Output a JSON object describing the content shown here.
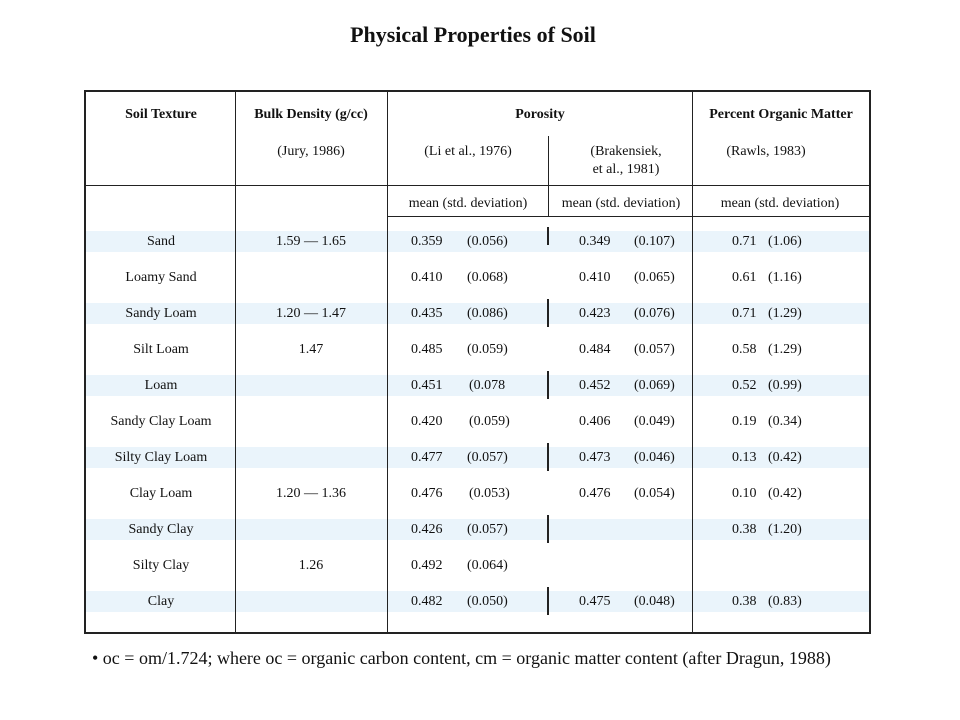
{
  "title": "Physical Properties of Soil",
  "headers": {
    "soil_texture": "Soil Texture",
    "bulk_density": "Bulk Density (g/cc)",
    "bulk_density_source": "(Jury, 1986)",
    "porosity": "Porosity",
    "porosity_source_1": "(Li et al., 1976)",
    "porosity_source_2_line1": "(Brakensiek,",
    "porosity_source_2_line2": "et al., 1981)",
    "organic_matter": "Percent Organic Matter",
    "organic_matter_source": "(Rawls, 1983)",
    "sub_porosity_1": "mean (std. deviation)",
    "sub_porosity_2": "mean   (std. deviation)",
    "sub_organic": "mean   (std. deviation)"
  },
  "rows": [
    {
      "texture": "Sand",
      "bulk": "1.59  —  1.65",
      "p1_mean": "0.359",
      "p1_sd": "(0.056)",
      "p2_mean": "0.349",
      "p2_sd": "(0.107)",
      "om_mean": "0.71",
      "om_sd": "(1.06)"
    },
    {
      "texture": "Loamy Sand",
      "bulk": "",
      "p1_mean": "0.410",
      "p1_sd": "(0.068)",
      "p2_mean": "0.410",
      "p2_sd": "(0.065)",
      "om_mean": "0.61",
      "om_sd": "(1.16)"
    },
    {
      "texture": "Sandy Loam",
      "bulk": "1.20  —  1.47",
      "p1_mean": "0.435",
      "p1_sd": "(0.086)",
      "p2_mean": "0.423",
      "p2_sd": "(0.076)",
      "om_mean": "0.71",
      "om_sd": "(1.29)"
    },
    {
      "texture": "Silt Loam",
      "bulk": "1.47",
      "p1_mean": "0.485",
      "p1_sd": "(0.059)",
      "p2_mean": "0.484",
      "p2_sd": "(0.057)",
      "om_mean": "0.58",
      "om_sd": "(1.29)"
    },
    {
      "texture": "Loam",
      "bulk": "",
      "p1_mean": "0.451",
      "p1_sd": "(0.078",
      "p2_mean": "0.452",
      "p2_sd": "(0.069)",
      "om_mean": "0.52",
      "om_sd": "(0.99)"
    },
    {
      "texture": "Sandy Clay Loam",
      "bulk": "",
      "p1_mean": "0.420",
      "p1_sd": "(0.059)",
      "p2_mean": "0.406",
      "p2_sd": "(0.049)",
      "om_mean": "0.19",
      "om_sd": "(0.34)"
    },
    {
      "texture": "Silty Clay Loam",
      "bulk": "",
      "p1_mean": "0.477",
      "p1_sd": "(0.057)",
      "p2_mean": "0.473",
      "p2_sd": "(0.046)",
      "om_mean": "0.13",
      "om_sd": "(0.42)"
    },
    {
      "texture": "Clay Loam",
      "bulk": "1.20  —  1.36",
      "p1_mean": "0.476",
      "p1_sd": "(0.053)",
      "p2_mean": "0.476",
      "p2_sd": "(0.054)",
      "om_mean": "0.10",
      "om_sd": "(0.42)"
    },
    {
      "texture": "Sandy Clay",
      "bulk": "",
      "p1_mean": "0.426",
      "p1_sd": "(0.057)",
      "p2_mean": "",
      "p2_sd": "",
      "om_mean": "0.38",
      "om_sd": "(1.20)"
    },
    {
      "texture": "Silty Clay",
      "bulk": "1.26",
      "p1_mean": "0.492",
      "p1_sd": "(0.064)",
      "p2_mean": "",
      "p2_sd": "",
      "om_mean": "",
      "om_sd": ""
    },
    {
      "texture": "Clay",
      "bulk": "",
      "p1_mean": "0.482",
      "p1_sd": "(0.050)",
      "p2_mean": "0.475",
      "p2_sd": "(0.048)",
      "om_mean": "0.38",
      "om_sd": "(0.83)"
    }
  ],
  "footnote": "• oc = om/1.724; where oc = organic carbon content, cm = organic matter content (after Dragun, 1988)"
}
